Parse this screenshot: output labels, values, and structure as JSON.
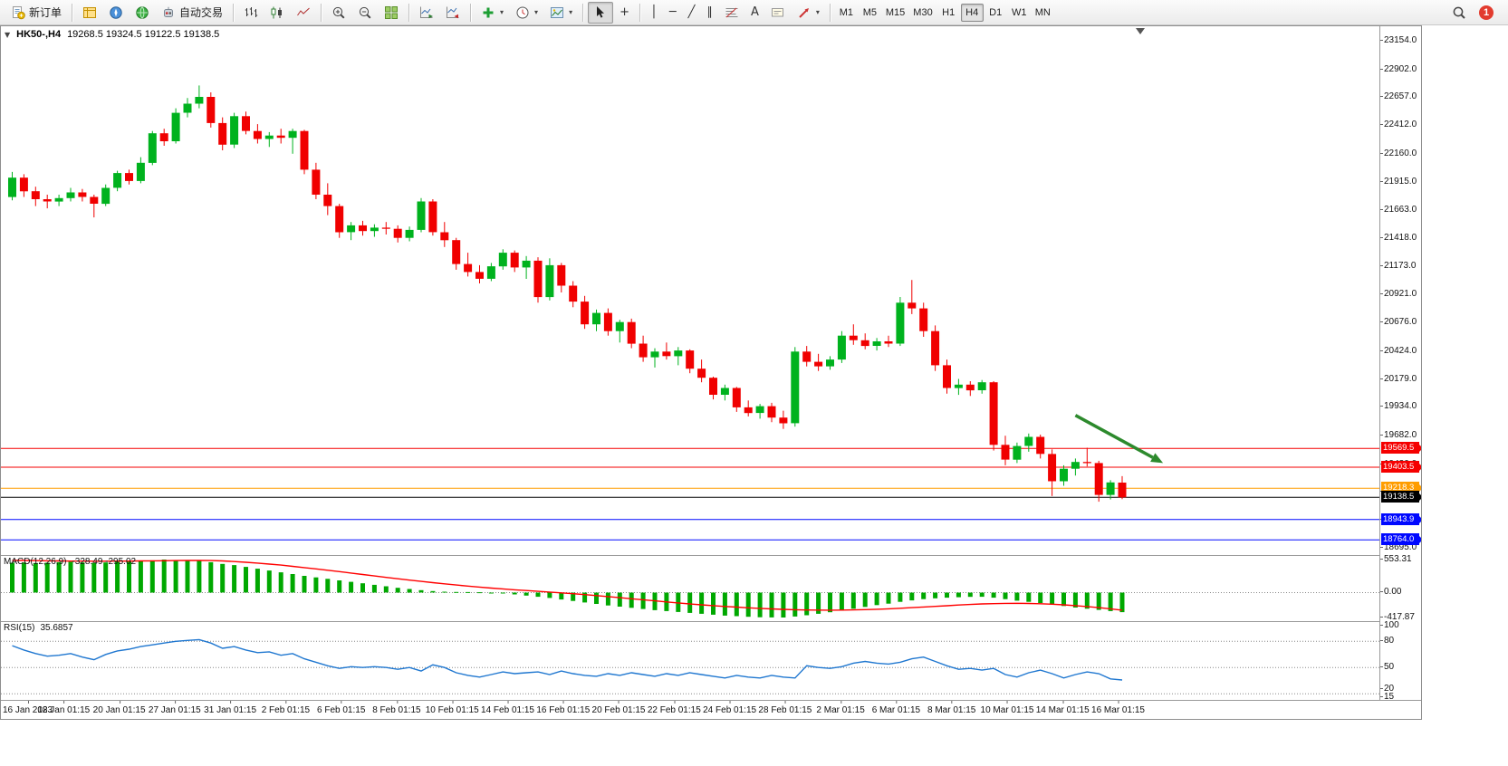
{
  "toolbar": {
    "new_order_label": "新订单",
    "autotrading_label": "自动交易",
    "timeframes": [
      "M1",
      "M5",
      "M15",
      "M30",
      "H1",
      "H4",
      "D1",
      "W1",
      "MN"
    ],
    "active_timeframe": "H4",
    "notification_count": "1"
  },
  "icons": {
    "one_click": "▼",
    "dropdown_arrow": "▾",
    "crosshair": "+",
    "vline": "│",
    "hline": "─",
    "trendline": "╱",
    "channel": "∥",
    "text_tool": "A"
  },
  "chart": {
    "symbol_period": "HK50-,H4",
    "ohlc_text": "19268.5 19324.5 19122.5 19138.5"
  },
  "chart_data": {
    "type": "candlestick",
    "symbol": "HK50-",
    "period": "H4",
    "current": {
      "open": 19268.5,
      "high": 19324.5,
      "low": 19122.5,
      "close": 19138.5
    },
    "candle_colors": {
      "bull": "#00b21e",
      "bear": "#f00000"
    },
    "price_axis_labels": [
      "23154.0",
      "22902.0",
      "22657.0",
      "22412.0",
      "22160.0",
      "21915.0",
      "21663.0",
      "21418.0",
      "21173.0",
      "20921.0",
      "20676.0",
      "20424.0",
      "20179.0",
      "19934.0",
      "19682.0",
      "19430.0",
      "19185.0",
      "18940.0",
      "18695.0"
    ],
    "horizontal_lines": [
      {
        "price": 19569.5,
        "label": "19569.5",
        "color": "#f50000"
      },
      {
        "price": 19403.5,
        "label": "19403.5",
        "color": "#f50000"
      },
      {
        "price": 19218.3,
        "label": "19218.3",
        "color": "#ff9d00"
      },
      {
        "price": 19138.5,
        "label": "19138.5",
        "color": "#000000"
      },
      {
        "price": 18943.9,
        "label": "18943.9",
        "color": "#0008ff"
      },
      {
        "price": 18764.0,
        "label": "18764.0",
        "color": "#0008ff"
      }
    ],
    "time_labels": [
      "16 Jan 2023",
      "18 Jan 01:15",
      "20 Jan 01:15",
      "27 Jan 01:15",
      "31 Jan 01:15",
      "2 Feb 01:15",
      "6 Feb 01:15",
      "8 Feb 01:15",
      "10 Feb 01:15",
      "14 Feb 01:15",
      "16 Feb 01:15",
      "20 Feb 01:15",
      "22 Feb 01:15",
      "24 Feb 01:15",
      "28 Feb 01:15",
      "2 Mar 01:15",
      "6 Mar 01:15",
      "8 Mar 01:15",
      "10 Mar 01:15",
      "14 Mar 01:15",
      "16 Mar 01:15"
    ],
    "annotation_arrow": {
      "x1_index": 91,
      "price1": 19860,
      "x2_index": 98.5,
      "price2": 19440,
      "color": "#2d8a2d"
    },
    "candles": [
      [
        21780,
        22000,
        21750,
        21950
      ],
      [
        21950,
        21980,
        21780,
        21830
      ],
      [
        21830,
        21870,
        21700,
        21760
      ],
      [
        21760,
        21800,
        21680,
        21740
      ],
      [
        21740,
        21800,
        21700,
        21770
      ],
      [
        21770,
        21860,
        21740,
        21820
      ],
      [
        21820,
        21850,
        21740,
        21780
      ],
      [
        21780,
        21800,
        21600,
        21720
      ],
      [
        21720,
        21890,
        21700,
        21860
      ],
      [
        21860,
        22010,
        21830,
        21990
      ],
      [
        21990,
        22020,
        21890,
        21920
      ],
      [
        21920,
        22130,
        21900,
        22080
      ],
      [
        22080,
        22360,
        22060,
        22340
      ],
      [
        22340,
        22380,
        22230,
        22270
      ],
      [
        22270,
        22560,
        22250,
        22520
      ],
      [
        22520,
        22650,
        22480,
        22600
      ],
      [
        22600,
        22760,
        22560,
        22660
      ],
      [
        22660,
        22700,
        22390,
        22430
      ],
      [
        22430,
        22480,
        22190,
        22240
      ],
      [
        22240,
        22520,
        22210,
        22490
      ],
      [
        22490,
        22530,
        22330,
        22360
      ],
      [
        22360,
        22420,
        22250,
        22290
      ],
      [
        22290,
        22350,
        22220,
        22320
      ],
      [
        22320,
        22380,
        22250,
        22300
      ],
      [
        22300,
        22380,
        22160,
        22360
      ],
      [
        22360,
        22370,
        21980,
        22020
      ],
      [
        22020,
        22080,
        21760,
        21800
      ],
      [
        21800,
        21900,
        21620,
        21700
      ],
      [
        21700,
        21720,
        21420,
        21470
      ],
      [
        21470,
        21560,
        21400,
        21530
      ],
      [
        21530,
        21570,
        21440,
        21480
      ],
      [
        21480,
        21540,
        21430,
        21510
      ],
      [
        21510,
        21560,
        21450,
        21500
      ],
      [
        21500,
        21530,
        21380,
        21420
      ],
      [
        21420,
        21520,
        21390,
        21490
      ],
      [
        21490,
        21770,
        21470,
        21740
      ],
      [
        21740,
        21760,
        21440,
        21470
      ],
      [
        21470,
        21560,
        21340,
        21400
      ],
      [
        21400,
        21420,
        21140,
        21190
      ],
      [
        21190,
        21290,
        21080,
        21120
      ],
      [
        21120,
        21180,
        21020,
        21060
      ],
      [
        21060,
        21200,
        21040,
        21170
      ],
      [
        21170,
        21320,
        21140,
        21290
      ],
      [
        21290,
        21310,
        21120,
        21160
      ],
      [
        21160,
        21260,
        21060,
        21220
      ],
      [
        21220,
        21250,
        20850,
        20900
      ],
      [
        20900,
        21240,
        20870,
        21180
      ],
      [
        21180,
        21200,
        20940,
        21000
      ],
      [
        21000,
        21040,
        20810,
        20860
      ],
      [
        20860,
        20910,
        20620,
        20660
      ],
      [
        20660,
        20790,
        20600,
        20760
      ],
      [
        20760,
        20800,
        20560,
        20600
      ],
      [
        20600,
        20700,
        20500,
        20680
      ],
      [
        20680,
        20710,
        20450,
        20490
      ],
      [
        20490,
        20560,
        20330,
        20370
      ],
      [
        20370,
        20450,
        20280,
        20420
      ],
      [
        20420,
        20500,
        20350,
        20380
      ],
      [
        20380,
        20460,
        20300,
        20430
      ],
      [
        20430,
        20440,
        20230,
        20270
      ],
      [
        20270,
        20350,
        20150,
        20190
      ],
      [
        20190,
        20200,
        20000,
        20040
      ],
      [
        20040,
        20130,
        19990,
        20100
      ],
      [
        20100,
        20110,
        19890,
        19930
      ],
      [
        19930,
        19990,
        19850,
        19880
      ],
      [
        19880,
        19960,
        19830,
        19940
      ],
      [
        19940,
        19970,
        19800,
        19840
      ],
      [
        19840,
        19900,
        19740,
        19790
      ],
      [
        19790,
        20460,
        19760,
        20420
      ],
      [
        20420,
        20470,
        20290,
        20330
      ],
      [
        20330,
        20400,
        20250,
        20290
      ],
      [
        20290,
        20380,
        20260,
        20350
      ],
      [
        20350,
        20600,
        20320,
        20560
      ],
      [
        20560,
        20660,
        20480,
        20520
      ],
      [
        20520,
        20580,
        20440,
        20470
      ],
      [
        20470,
        20540,
        20430,
        20510
      ],
      [
        20510,
        20560,
        20460,
        20490
      ],
      [
        20490,
        20900,
        20470,
        20850
      ],
      [
        20850,
        21050,
        20750,
        20800
      ],
      [
        20800,
        20850,
        20550,
        20600
      ],
      [
        20600,
        20650,
        20250,
        20300
      ],
      [
        20300,
        20350,
        20050,
        20100
      ],
      [
        20100,
        20180,
        20040,
        20130
      ],
      [
        20130,
        20160,
        20030,
        20080
      ],
      [
        20080,
        20170,
        20050,
        20150
      ],
      [
        20150,
        20160,
        19550,
        19600
      ],
      [
        19600,
        19680,
        19420,
        19470
      ],
      [
        19470,
        19620,
        19440,
        19590
      ],
      [
        19590,
        19700,
        19540,
        19670
      ],
      [
        19670,
        19690,
        19480,
        19520
      ],
      [
        19520,
        19560,
        19150,
        19280
      ],
      [
        19280,
        19420,
        19240,
        19390
      ],
      [
        19390,
        19480,
        19330,
        19450
      ],
      [
        19450,
        19575,
        19410,
        19440
      ],
      [
        19440,
        19460,
        19100,
        19160
      ],
      [
        19160,
        19290,
        19120,
        19270
      ],
      [
        19268.5,
        19324.5,
        19122.5,
        19138.5
      ]
    ],
    "indicators": {
      "macd": {
        "name": "MACD(12,26,9)",
        "values": "-328.49 -295.02",
        "axis_labels": [
          "553.31",
          "0.00",
          "-417.87"
        ],
        "max": 553.31,
        "min": -417.87,
        "histogram_color": "#00a800",
        "signal_color": "#ff0000",
        "histogram": [
          500,
          505,
          495,
          500,
          510,
          515,
          505,
          495,
          505,
          515,
          520,
          530,
          540,
          553.31,
          540,
          535,
          530,
          510,
          480,
          460,
          430,
          400,
          370,
          340,
          310,
          280,
          255,
          230,
          205,
          180,
          155,
          130,
          105,
          80,
          60,
          40,
          25,
          15,
          10,
          8,
          5,
          -5,
          -15,
          -30,
          -50,
          -70,
          -90,
          -115,
          -140,
          -165,
          -190,
          -215,
          -235,
          -255,
          -275,
          -295,
          -310,
          -325,
          -340,
          -355,
          -370,
          -385,
          -395,
          -405,
          -412,
          -416,
          -417.87,
          -400,
          -380,
          -355,
          -330,
          -300,
          -270,
          -240,
          -210,
          -185,
          -155,
          -130,
          -110,
          -95,
          -85,
          -78,
          -72,
          -70,
          -85,
          -110,
          -135,
          -155,
          -175,
          -200,
          -225,
          -250,
          -270,
          -290,
          -310,
          -328.49
        ],
        "signal": [
          540,
          538,
          535,
          532,
          530,
          528,
          527,
          526,
          526,
          527,
          528,
          530,
          532,
          534,
          536,
          538,
          539,
          536,
          530,
          520,
          508,
          494,
          478,
          460,
          440,
          419,
          397,
          374,
          351,
          327,
          303,
          279,
          255,
          232,
          209,
          187,
          166,
          146,
          127,
          109,
          92,
          76,
          61,
          47,
          34,
          21,
          8,
          -5,
          -19,
          -34,
          -50,
          -67,
          -85,
          -103,
          -121,
          -139,
          -157,
          -174,
          -190,
          -205,
          -219,
          -232,
          -244,
          -255,
          -265,
          -274,
          -282,
          -288,
          -292,
          -294,
          -295,
          -294,
          -291,
          -286,
          -280,
          -272,
          -263,
          -253,
          -242,
          -231,
          -220,
          -209,
          -199,
          -191,
          -185,
          -181,
          -180,
          -182,
          -187,
          -195,
          -206,
          -219,
          -234,
          -252,
          -272,
          -295.02
        ]
      },
      "rsi": {
        "name": "RSI(15)",
        "value": "35.6857",
        "axis_labels": [
          "100",
          "80",
          "50",
          "20",
          "15"
        ],
        "levels": [
          80,
          50,
          20
        ],
        "line_color": "#1f77d0",
        "values": [
          75,
          70,
          66,
          63,
          64,
          66,
          62,
          59,
          65,
          69,
          71,
          74,
          76,
          78,
          80,
          81,
          82,
          78,
          72,
          74,
          70,
          67,
          68,
          64,
          66,
          60,
          56,
          52,
          49,
          51,
          50,
          51,
          50,
          48,
          50,
          46,
          53,
          50,
          44,
          41,
          39,
          42,
          45,
          43,
          44,
          45,
          42,
          46,
          43,
          41,
          40,
          43,
          41,
          44,
          42,
          40,
          43,
          41,
          44,
          42,
          40,
          38,
          41,
          39,
          38,
          41,
          39,
          38,
          52,
          50,
          49,
          51,
          55,
          57,
          55,
          54,
          56,
          60,
          62,
          57,
          52,
          48,
          49,
          47,
          49,
          42,
          39,
          44,
          47,
          43,
          38,
          42,
          45,
          43,
          37,
          35.69
        ]
      }
    }
  }
}
